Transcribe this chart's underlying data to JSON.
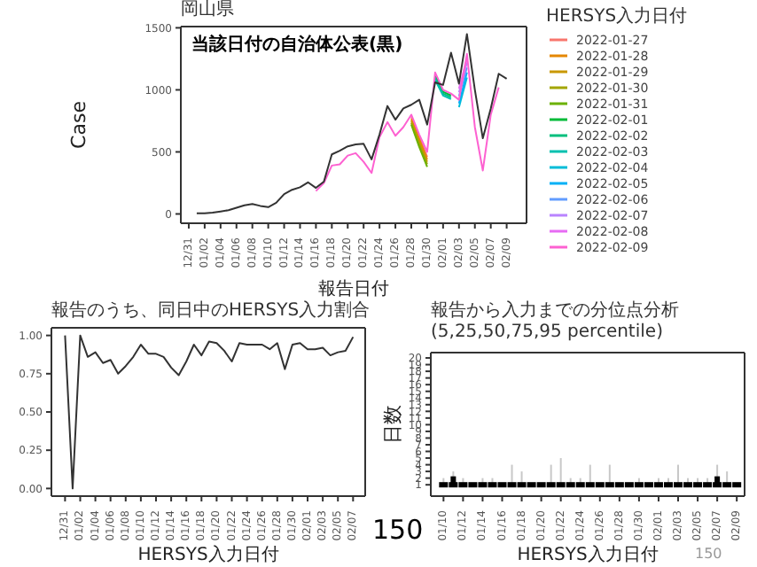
{
  "chart_data": [
    {
      "type": "line",
      "title": "岡山県",
      "xlabel": "報告日付",
      "ylabel": "Case",
      "legend_title": "HERSYS入力日付",
      "legend": "right",
      "categories": [
        "12/31",
        null,
        "01/02",
        null,
        "01/04",
        null,
        "01/06",
        null,
        "01/08",
        null,
        "01/10",
        null,
        "01/12",
        null,
        "01/14",
        null,
        "01/16",
        null,
        "01/18",
        null,
        "01/20",
        null,
        "01/22",
        null,
        "01/24",
        null,
        "01/26",
        null,
        "01/28",
        null,
        "01/30",
        null,
        "02/01",
        null,
        "02/03",
        null,
        "02/05",
        null,
        "02/07",
        null,
        "02/09"
      ],
      "ylim": [
        -75,
        1510
      ],
      "yticks": [
        0,
        500,
        1000,
        1500
      ],
      "annotations": [
        "当該日付の自治体公表(黒)"
      ],
      "series": [
        {
          "name": "2022-01-27",
          "color": "#f8766d",
          "values": [
            null,
            null,
            null,
            null,
            null,
            null,
            null,
            null,
            null,
            null,
            null,
            null,
            null,
            null,
            null,
            null,
            null,
            null,
            null,
            null,
            null,
            null,
            null,
            null,
            null,
            null,
            null,
            null,
            780,
            620,
            460,
            null,
            null,
            null,
            null,
            null,
            null,
            null,
            null,
            null,
            null
          ]
        },
        {
          "name": "2022-01-28",
          "color": "#e58700",
          "values": [
            null,
            null,
            null,
            null,
            null,
            null,
            null,
            null,
            null,
            null,
            null,
            null,
            null,
            null,
            null,
            null,
            null,
            null,
            null,
            null,
            null,
            null,
            null,
            null,
            null,
            null,
            null,
            null,
            765,
            600,
            440,
            null,
            null,
            null,
            null,
            null,
            null,
            null,
            null,
            null,
            null
          ]
        },
        {
          "name": "2022-01-29",
          "color": "#c99800",
          "values": [
            null,
            null,
            null,
            null,
            null,
            null,
            null,
            null,
            null,
            null,
            null,
            null,
            null,
            null,
            null,
            null,
            null,
            null,
            null,
            null,
            null,
            null,
            null,
            null,
            null,
            null,
            null,
            null,
            750,
            580,
            420,
            null,
            null,
            null,
            null,
            null,
            null,
            null,
            null,
            null,
            null
          ]
        },
        {
          "name": "2022-01-30",
          "color": "#a3a500",
          "values": [
            null,
            null,
            null,
            null,
            null,
            null,
            null,
            null,
            null,
            null,
            null,
            null,
            null,
            null,
            null,
            null,
            null,
            null,
            null,
            null,
            null,
            null,
            null,
            null,
            null,
            null,
            null,
            null,
            735,
            560,
            400,
            null,
            null,
            null,
            null,
            null,
            null,
            null,
            null,
            null,
            null
          ]
        },
        {
          "name": "2022-01-31",
          "color": "#6bb100",
          "values": [
            null,
            null,
            null,
            null,
            null,
            null,
            null,
            null,
            null,
            null,
            null,
            null,
            null,
            null,
            null,
            null,
            null,
            null,
            null,
            null,
            null,
            null,
            null,
            null,
            null,
            null,
            null,
            null,
            720,
            540,
            380,
            null,
            null,
            null,
            null,
            null,
            null,
            null,
            null,
            null,
            null
          ]
        },
        {
          "name": "2022-02-01",
          "color": "#00ba38",
          "values": [
            null,
            null,
            null,
            null,
            null,
            null,
            null,
            null,
            null,
            null,
            null,
            null,
            null,
            null,
            null,
            null,
            null,
            null,
            null,
            null,
            null,
            null,
            null,
            null,
            null,
            null,
            null,
            null,
            null,
            null,
            null,
            1120,
            985,
            955,
            null,
            null,
            null,
            null,
            null,
            null,
            null
          ]
        },
        {
          "name": "2022-02-02",
          "color": "#00bf7d",
          "values": [
            null,
            null,
            null,
            null,
            null,
            null,
            null,
            null,
            null,
            null,
            null,
            null,
            null,
            null,
            null,
            null,
            null,
            null,
            null,
            null,
            null,
            null,
            null,
            null,
            null,
            null,
            null,
            null,
            null,
            null,
            null,
            1100,
            970,
            940,
            null,
            null,
            null,
            null,
            null,
            null,
            null
          ]
        },
        {
          "name": "2022-02-03",
          "color": "#00c0af",
          "values": [
            null,
            null,
            null,
            null,
            null,
            null,
            null,
            null,
            null,
            null,
            null,
            null,
            null,
            null,
            null,
            null,
            null,
            null,
            null,
            null,
            null,
            null,
            null,
            null,
            null,
            null,
            null,
            null,
            null,
            null,
            null,
            1080,
            955,
            925,
            null,
            null,
            null,
            null,
            null,
            null,
            null
          ]
        },
        {
          "name": "2022-02-04",
          "color": "#00bcd8",
          "values": [
            null,
            null,
            null,
            null,
            null,
            null,
            null,
            null,
            null,
            null,
            null,
            null,
            null,
            null,
            null,
            null,
            null,
            null,
            null,
            null,
            null,
            null,
            null,
            null,
            null,
            null,
            null,
            null,
            null,
            null,
            null,
            null,
            null,
            null,
            860,
            1100,
            null,
            null,
            null,
            null,
            null
          ]
        },
        {
          "name": "2022-02-05",
          "color": "#00b0f6",
          "values": [
            null,
            null,
            null,
            null,
            null,
            null,
            null,
            null,
            null,
            null,
            null,
            null,
            null,
            null,
            null,
            null,
            null,
            null,
            null,
            null,
            null,
            null,
            null,
            null,
            null,
            null,
            null,
            null,
            null,
            null,
            null,
            null,
            null,
            null,
            890,
            1140,
            null,
            null,
            null,
            null,
            null
          ]
        },
        {
          "name": "2022-02-06",
          "color": "#619cff",
          "values": [
            null,
            null,
            null,
            null,
            null,
            null,
            null,
            null,
            null,
            null,
            null,
            null,
            null,
            null,
            null,
            null,
            null,
            null,
            null,
            null,
            null,
            null,
            null,
            null,
            null,
            null,
            null,
            null,
            null,
            null,
            null,
            null,
            null,
            null,
            950,
            1180,
            null,
            null,
            null,
            null,
            null
          ]
        },
        {
          "name": "2022-02-07",
          "color": "#b983ff",
          "values": [
            null,
            null,
            null,
            null,
            null,
            null,
            null,
            null,
            null,
            null,
            null,
            null,
            null,
            null,
            null,
            null,
            null,
            null,
            null,
            null,
            null,
            null,
            null,
            null,
            null,
            null,
            null,
            null,
            null,
            null,
            null,
            null,
            null,
            null,
            980,
            1220,
            null,
            null,
            null,
            null,
            null
          ]
        },
        {
          "name": "2022-02-08",
          "color": "#e76bf3",
          "values": [
            null,
            null,
            null,
            null,
            null,
            null,
            null,
            null,
            null,
            null,
            null,
            null,
            null,
            null,
            null,
            null,
            null,
            null,
            null,
            null,
            null,
            null,
            null,
            null,
            null,
            null,
            null,
            null,
            null,
            null,
            null,
            null,
            null,
            null,
            1010,
            1250,
            null,
            null,
            null,
            null,
            null
          ]
        },
        {
          "name": "2022-02-09",
          "color": "#fd61d1",
          "values": [
            null,
            null,
            null,
            null,
            null,
            null,
            null,
            null,
            null,
            null,
            null,
            null,
            null,
            null,
            null,
            null,
            185,
            250,
            390,
            400,
            470,
            490,
            420,
            330,
            620,
            740,
            630,
            700,
            800,
            640,
            500,
            1140,
            1000,
            970,
            920,
            1290,
            700,
            350,
            800,
            1020,
            null
          ]
        },
        {
          "color": "#333333",
          "values": [
            null,
            5,
            5,
            10,
            20,
            30,
            50,
            70,
            80,
            65,
            55,
            90,
            160,
            195,
            215,
            255,
            210,
            260,
            480,
            510,
            545,
            560,
            565,
            440,
            640,
            870,
            760,
            850,
            880,
            920,
            720,
            1060,
            1040,
            1300,
            1050,
            1450,
            1000,
            610,
            850,
            1130,
            1090
          ]
        }
      ]
    },
    {
      "type": "line",
      "title": "報告のうち、同日中のHERSYS入力割合",
      "xlabel": "HERSYS入力日付",
      "categories": [
        "12/31",
        null,
        "01/02",
        null,
        "01/04",
        null,
        "01/06",
        null,
        "01/08",
        null,
        "01/10",
        null,
        "01/12",
        null,
        "01/14",
        null,
        "01/16",
        null,
        "01/18",
        null,
        "01/20",
        null,
        "01/22",
        null,
        "01/24",
        null,
        "01/26",
        null,
        "01/28",
        null,
        "01/30",
        null,
        "02/01",
        null,
        "02/03",
        null,
        "02/05",
        null,
        "02/07"
      ],
      "ylim": [
        -0.05,
        1.05
      ],
      "yticks": [
        {
          "value": 0,
          "label": "0.00"
        },
        {
          "value": 0.25,
          "label": "0.25"
        },
        {
          "value": 0.5,
          "label": "0.50"
        },
        {
          "value": 0.75,
          "label": "0.75"
        },
        {
          "value": 1,
          "label": "1.00"
        }
      ],
      "annotations": [
        "150"
      ],
      "series": [
        {
          "color": "#333333",
          "values": [
            1.0,
            0.0,
            1.0,
            0.86,
            0.89,
            0.82,
            0.84,
            0.75,
            0.8,
            0.86,
            0.94,
            0.88,
            0.88,
            0.86,
            0.79,
            0.74,
            0.83,
            0.94,
            0.87,
            0.96,
            0.95,
            0.9,
            0.83,
            0.95,
            0.94,
            0.94,
            0.94,
            0.91,
            0.95,
            0.78,
            0.94,
            0.95,
            0.91,
            0.91,
            0.92,
            0.87,
            0.89,
            0.9,
            0.99
          ]
        }
      ]
    },
    {
      "type": "box",
      "title": "報告から入力までの分位点分析(5,25,50,75,95 percentile)",
      "xlabel": "HERSYS入力日付",
      "ylabel": "日数",
      "categories": [
        "01/10",
        null,
        "01/12",
        null,
        "01/14",
        null,
        "01/16",
        null,
        "01/18",
        null,
        "01/20",
        null,
        "01/22",
        null,
        "01/24",
        null,
        "01/26",
        null,
        "01/28",
        null,
        "01/30",
        null,
        "02/01",
        null,
        "02/03",
        null,
        "02/05",
        null,
        "02/07",
        null,
        "02/09"
      ],
      "ylim": [
        -0.7,
        20.8
      ],
      "yticks": [
        1,
        2,
        3,
        4,
        5,
        6,
        7,
        8,
        9,
        10,
        11,
        12,
        13,
        14,
        15,
        16,
        17,
        18,
        19,
        20
      ],
      "annotations": [
        "150"
      ],
      "color": "#000000",
      "boxes": [
        {
          "low": 1,
          "q1": 1,
          "median": 1,
          "q3": 1,
          "high": 2
        },
        {
          "low": 1,
          "q1": 1,
          "median": 1,
          "q3": 2,
          "high": 3
        },
        {
          "low": 1,
          "q1": 1,
          "median": 1,
          "q3": 1,
          "high": 2
        },
        {
          "low": 1,
          "q1": 1,
          "median": 1,
          "q3": 1,
          "high": 1
        },
        {
          "low": 1,
          "q1": 1,
          "median": 1,
          "q3": 1,
          "high": 2
        },
        {
          "low": 1,
          "q1": 1,
          "median": 1,
          "q3": 1,
          "high": 2
        },
        {
          "low": 1,
          "q1": 1,
          "median": 1,
          "q3": 1,
          "high": 1
        },
        {
          "low": 1,
          "q1": 1,
          "median": 1,
          "q3": 1,
          "high": 4
        },
        {
          "low": 1,
          "q1": 1,
          "median": 1,
          "q3": 1,
          "high": 3
        },
        {
          "low": 1,
          "q1": 1,
          "median": 1,
          "q3": 1,
          "high": 1
        },
        {
          "low": 1,
          "q1": 1,
          "median": 1,
          "q3": 1,
          "high": 1
        },
        {
          "low": 1,
          "q1": 1,
          "median": 1,
          "q3": 1,
          "high": 4
        },
        {
          "low": 1,
          "q1": 1,
          "median": 1,
          "q3": 1,
          "high": 5
        },
        {
          "low": 1,
          "q1": 1,
          "median": 1,
          "q3": 1,
          "high": 2
        },
        {
          "low": 1,
          "q1": 1,
          "median": 1,
          "q3": 1,
          "high": 2
        },
        {
          "low": 1,
          "q1": 1,
          "median": 1,
          "q3": 1,
          "high": 4
        },
        {
          "low": 1,
          "q1": 1,
          "median": 1,
          "q3": 1,
          "high": 1
        },
        {
          "low": 1,
          "q1": 1,
          "median": 1,
          "q3": 1,
          "high": 4
        },
        {
          "low": 1,
          "q1": 1,
          "median": 1,
          "q3": 1,
          "high": 1
        },
        {
          "low": 1,
          "q1": 1,
          "median": 1,
          "q3": 1,
          "high": 1
        },
        {
          "low": 1,
          "q1": 1,
          "median": 1,
          "q3": 1,
          "high": 2
        },
        {
          "low": 1,
          "q1": 1,
          "median": 1,
          "q3": 1,
          "high": 1
        },
        {
          "low": 1,
          "q1": 1,
          "median": 1,
          "q3": 1,
          "high": 2
        },
        {
          "low": 1,
          "q1": 1,
          "median": 1,
          "q3": 1,
          "high": 2
        },
        {
          "low": 1,
          "q1": 1,
          "median": 1,
          "q3": 1,
          "high": 4
        },
        {
          "low": 1,
          "q1": 1,
          "median": 1,
          "q3": 1,
          "high": 2
        },
        {
          "low": 1,
          "q1": 1,
          "median": 1,
          "q3": 1,
          "high": 2
        },
        {
          "low": 1,
          "q1": 1,
          "median": 1,
          "q3": 1,
          "high": 2
        },
        {
          "low": 1,
          "q1": 1,
          "median": 1,
          "q3": 2,
          "high": 4
        },
        {
          "low": 1,
          "q1": 1,
          "median": 1,
          "q3": 1,
          "high": 3
        },
        {
          "low": 1,
          "q1": 1,
          "median": 1,
          "q3": 1,
          "high": 1
        }
      ]
    }
  ]
}
